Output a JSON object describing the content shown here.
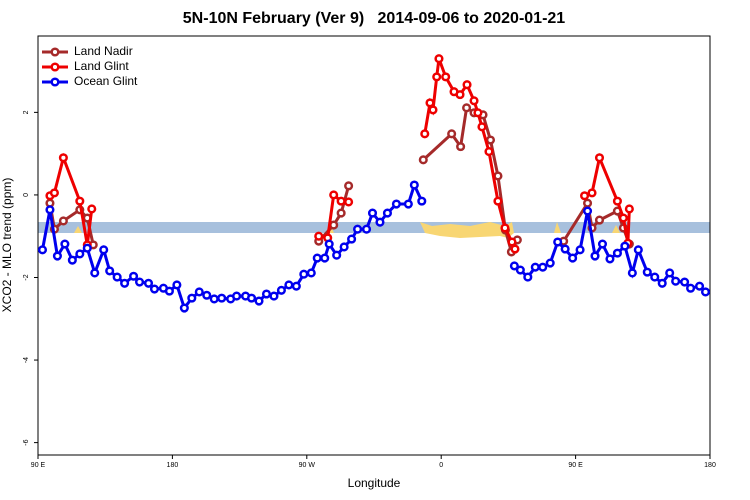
{
  "chart_data": {
    "type": "line",
    "title": "5N-10N February (Ver 9)   2014-09-06 to 2020-01-21",
    "x_label": "Longitude",
    "y_label": "XCO2 - MLO trend (ppm)",
    "xlim": [
      90,
      540
    ],
    "xticks": [
      {
        "value": 90,
        "label": "90 E"
      },
      180,
      {
        "value": 270,
        "label": "90 W"
      },
      {
        "value": 360,
        "label": "0"
      },
      {
        "value": 450,
        "label": "90 E"
      },
      {
        "value": 540,
        "label": "180"
      }
    ],
    "ylim": [
      -6.3,
      3.85
    ],
    "yticks": [
      -6,
      -4,
      -2,
      0,
      2
    ],
    "legend": "top-left",
    "series": [
      {
        "name": "Land Nadir",
        "color": "#a52a2a",
        "x": [
          98,
          101,
          107,
          118,
          123,
          127,
          null,
          278,
          288,
          293,
          298,
          null,
          348,
          367,
          373,
          377,
          382,
          388,
          393,
          398,
          403,
          407,
          411,
          null,
          442,
          458,
          461,
          466,
          478,
          482,
          486
        ],
        "values": [
          -0.2,
          -0.83,
          -0.63,
          -0.36,
          -0.56,
          -1.21,
          null,
          -1.12,
          -0.73,
          -0.44,
          0.22,
          null,
          0.85,
          1.48,
          1.17,
          2.11,
          1.99,
          1.94,
          1.33,
          0.46,
          -0.85,
          -1.38,
          -1.09,
          null,
          -1.12,
          -0.2,
          -0.8,
          -0.61,
          -0.39,
          -0.8,
          -1.19
        ]
      },
      {
        "name": "Land Glint",
        "color": "#ee0000",
        "x": [
          98,
          101,
          107,
          118,
          123,
          126,
          null,
          278,
          284,
          288,
          293,
          298,
          null,
          349,
          352.5,
          354.5,
          357,
          358.5,
          363,
          368.6,
          372.6,
          377.3,
          382,
          384.6,
          387.3,
          392,
          398,
          402.7,
          407.4,
          409.4,
          null,
          456,
          461,
          466,
          478,
          482,
          485,
          486
        ],
        "values": [
          -0.02,
          0.05,
          0.9,
          -0.15,
          -1.21,
          -0.34,
          null,
          -1.0,
          -1.04,
          0,
          -0.15,
          -0.17,
          null,
          1.48,
          2.23,
          2.06,
          2.86,
          3.3,
          2.86,
          2.5,
          2.43,
          2.67,
          2.28,
          1.99,
          1.65,
          1.05,
          -0.15,
          -0.8,
          -1.14,
          -1.31,
          null,
          -0.02,
          0.05,
          0.9,
          -0.15,
          -0.56,
          -1.17,
          -0.34
        ]
      },
      {
        "name": "Ocean Glint",
        "color": "#0000ee",
        "x": [
          93,
          98,
          103,
          108,
          113,
          118,
          123,
          128,
          134,
          138,
          143,
          148,
          154,
          158,
          164,
          168,
          174,
          178,
          183,
          188,
          193,
          198,
          203,
          208,
          213,
          219,
          223,
          229,
          233,
          238,
          243,
          248,
          253,
          258,
          263,
          268,
          273,
          277,
          282,
          285,
          290,
          295,
          300,
          304,
          310,
          314,
          319,
          324,
          330,
          338,
          342,
          347,
          null,
          409,
          413,
          418,
          423,
          428,
          433,
          438,
          443,
          448,
          453,
          458,
          463,
          468,
          473,
          478,
          483,
          488,
          492,
          498,
          503,
          508,
          513,
          517,
          523,
          527,
          533,
          537
        ],
        "values": [
          -1.33,
          -0.36,
          -1.48,
          -1.19,
          -1.58,
          -1.43,
          -1.29,
          -1.89,
          -1.33,
          -1.84,
          -1.99,
          -2.14,
          -1.97,
          -2.11,
          -2.14,
          -2.28,
          -2.26,
          -2.33,
          -2.18,
          -2.74,
          -2.5,
          -2.35,
          -2.43,
          -2.52,
          -2.5,
          -2.52,
          -2.45,
          -2.45,
          -2.5,
          -2.57,
          -2.4,
          -2.45,
          -2.31,
          -2.18,
          -2.21,
          -1.92,
          -1.89,
          -1.53,
          -1.53,
          -1.19,
          -1.46,
          -1.26,
          -1.07,
          -0.83,
          -0.83,
          -0.44,
          -0.66,
          -0.44,
          -0.22,
          -0.22,
          0.24,
          -0.15,
          null,
          -1.72,
          -1.82,
          -1.99,
          -1.75,
          -1.75,
          -1.65,
          -1.14,
          -1.31,
          -1.53,
          -1.33,
          -0.39,
          -1.48,
          -1.19,
          -1.55,
          -1.41,
          -1.24,
          -1.89,
          -1.33,
          -1.87,
          -1.99,
          -2.14,
          -1.89,
          -2.09,
          -2.11,
          -2.26,
          -2.21,
          -2.35
        ]
      }
    ]
  }
}
